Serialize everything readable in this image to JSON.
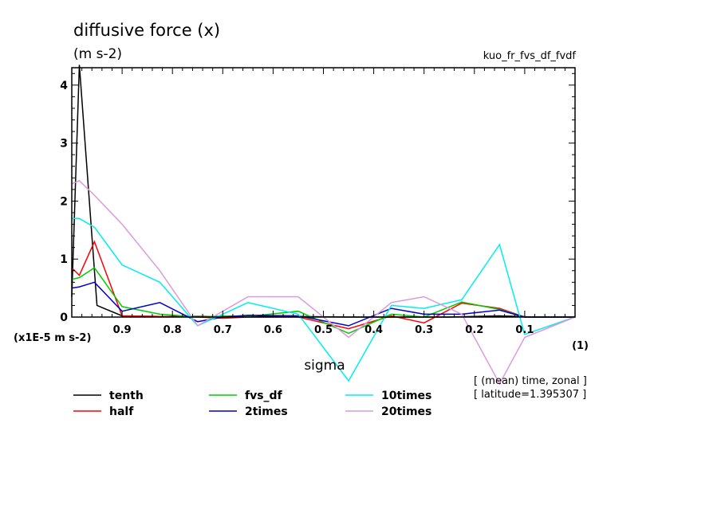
{
  "chart_data": {
    "type": "line",
    "title": "diffusive force (x)",
    "units_label": "(m s-2)",
    "experiment_label": "kuo_fr_fvs_df_fvdf",
    "xlabel": "sigma",
    "x_unit_label": "(1)",
    "y_scale_label": "(x1E-5 m s-2)",
    "info_lines": [
      "[ (mean) time, zonal ]",
      "[ latitude=1.395307 ]"
    ],
    "xlim": [
      1.0,
      0.0
    ],
    "ylim": [
      0,
      4.3
    ],
    "x_ticks": [
      0.9,
      0.8,
      0.7,
      0.6,
      0.5,
      0.4,
      0.3,
      0.2,
      0.1
    ],
    "x_tick_labels": [
      "0.9",
      "0.8",
      "0.7",
      "0.6",
      "0.5",
      "0.4",
      "0.3",
      "0.2",
      "0.1"
    ],
    "y_ticks": [
      0,
      1,
      2,
      3,
      4
    ],
    "y_tick_labels": [
      "0",
      "1",
      "2",
      "3",
      "4"
    ],
    "series": [
      {
        "name": "tenth",
        "color": "#000000",
        "x": [
          1.0,
          0.985,
          0.95,
          0.9,
          0.825,
          0.75,
          0.65,
          0.55,
          0.45,
          0.35,
          0.25,
          0.15,
          0.08,
          0.0
        ],
        "y": [
          0.35,
          4.35,
          0.2,
          0.02,
          0.01,
          0.01,
          0.01,
          0.01,
          0.0,
          0.0,
          0.0,
          0.02,
          0.0,
          0.0
        ]
      },
      {
        "name": "half",
        "color": "#ff0000",
        "x": [
          1.0,
          0.985,
          0.955,
          0.9,
          0.825,
          0.75,
          0.7,
          0.65,
          0.55,
          0.45,
          0.365,
          0.3,
          0.225,
          0.15,
          0.1,
          0.0
        ],
        "y": [
          0.85,
          0.72,
          1.3,
          0.02,
          0.01,
          0.0,
          -0.02,
          0.0,
          0.0,
          -0.2,
          0.02,
          -0.1,
          0.24,
          0.15,
          0.0,
          0.0
        ]
      },
      {
        "name": "fvs_df",
        "color": "#00cc00",
        "x": [
          1.0,
          0.985,
          0.955,
          0.9,
          0.825,
          0.75,
          0.7,
          0.65,
          0.55,
          0.45,
          0.365,
          0.3,
          0.225,
          0.15,
          0.1,
          0.0
        ],
        "y": [
          0.65,
          0.68,
          0.85,
          0.18,
          0.05,
          0.0,
          0.02,
          0.01,
          0.1,
          -0.28,
          0.05,
          0.0,
          0.26,
          0.13,
          0.0,
          0.0
        ]
      },
      {
        "name": "2times",
        "color": "#0000cc",
        "x": [
          1.0,
          0.985,
          0.955,
          0.9,
          0.825,
          0.75,
          0.7,
          0.65,
          0.55,
          0.45,
          0.365,
          0.3,
          0.225,
          0.15,
          0.1,
          0.0
        ],
        "y": [
          0.5,
          0.52,
          0.6,
          0.1,
          0.25,
          -0.08,
          0.0,
          0.03,
          0.02,
          -0.15,
          0.15,
          0.05,
          0.05,
          0.12,
          0.0,
          0.0
        ]
      },
      {
        "name": "10times",
        "color": "#00eeee",
        "x": [
          1.0,
          0.985,
          0.955,
          0.9,
          0.825,
          0.75,
          0.7,
          0.65,
          0.55,
          0.45,
          0.365,
          0.3,
          0.225,
          0.15,
          0.1,
          0.0
        ],
        "y": [
          1.7,
          1.7,
          1.55,
          0.9,
          0.6,
          -0.15,
          0.05,
          0.25,
          0.05,
          -1.1,
          0.2,
          0.15,
          0.3,
          1.25,
          -0.3,
          0.0
        ]
      },
      {
        "name": "20times",
        "color": "#dd99dd",
        "x": [
          1.0,
          0.985,
          0.955,
          0.9,
          0.825,
          0.75,
          0.7,
          0.65,
          0.55,
          0.45,
          0.365,
          0.3,
          0.225,
          0.15,
          0.1,
          0.0
        ],
        "y": [
          2.3,
          2.35,
          2.1,
          1.6,
          0.8,
          -0.15,
          0.1,
          0.35,
          0.35,
          -0.35,
          0.25,
          0.35,
          0.05,
          -1.15,
          -0.35,
          0.0
        ]
      }
    ]
  }
}
